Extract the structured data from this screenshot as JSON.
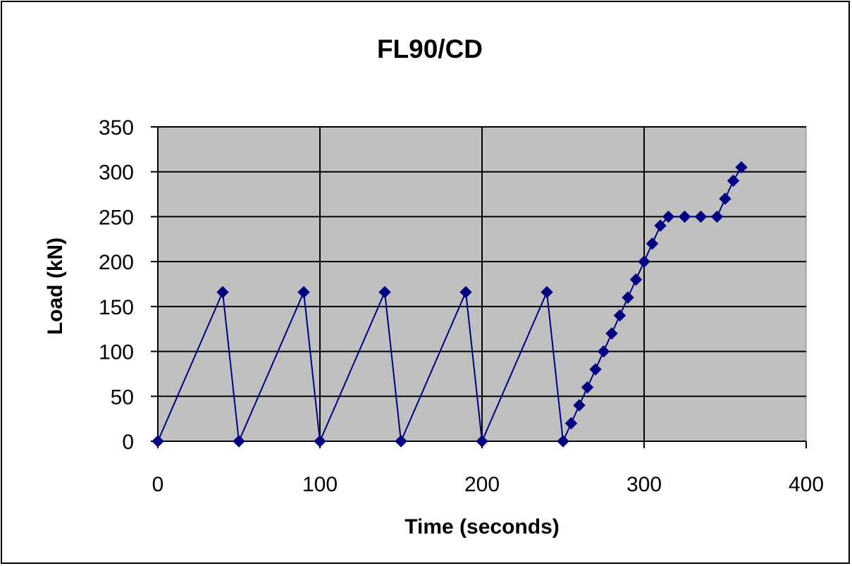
{
  "chart_data": {
    "type": "line",
    "title": "FL90/CD",
    "xlabel": "Time (seconds)",
    "ylabel": "Load (kN)",
    "xlim": [
      0,
      400
    ],
    "ylim": [
      0,
      350
    ],
    "xticks": [
      0,
      100,
      200,
      300,
      400
    ],
    "yticks": [
      0,
      50,
      100,
      150,
      200,
      250,
      300,
      350
    ],
    "grid": true,
    "legend": "none",
    "colors": {
      "plot_background": "#c0c0c0",
      "series_line": "#000080",
      "gridlines": "#000000"
    },
    "marker": "diamond",
    "series": [
      {
        "x": [
          0,
          40,
          50,
          90,
          100,
          140,
          150,
          190,
          200,
          240,
          250,
          255,
          260,
          265,
          270,
          275,
          280,
          285,
          290,
          295,
          300,
          305,
          310,
          315,
          325,
          335,
          345,
          350,
          355,
          360
        ],
        "y": [
          0,
          166,
          0,
          166,
          0,
          166,
          0,
          166,
          0,
          166,
          0,
          20,
          40,
          60,
          80,
          100,
          120,
          140,
          160,
          180,
          200,
          220,
          240,
          250,
          250,
          250,
          250,
          270,
          290,
          305
        ]
      }
    ]
  }
}
